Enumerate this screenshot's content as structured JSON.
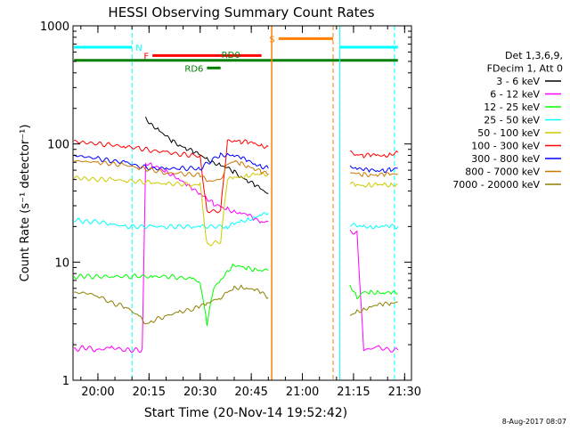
{
  "footer_date": "8-Aug-2017 08:07",
  "chart_data": {
    "type": "line",
    "title": "HESSI Observing Summary Count Rates",
    "xlabel": "Start Time (20-Nov-14 19:52:42)",
    "ylabel": "Count Rate (s⁻¹ detector⁻¹)",
    "yscale": "log",
    "ylim": [
      1,
      1000
    ],
    "xlim": [
      "19:52:42",
      "21:32:00"
    ],
    "x_ticks": [
      "20:00",
      "20:15",
      "20:30",
      "20:45",
      "21:00",
      "21:15",
      "21:30"
    ],
    "y_ticks": [
      "1",
      "10",
      "100",
      "1000"
    ],
    "grid": false,
    "legend_position": "right",
    "legend_header": [
      "Det 1,3,6,9,",
      "FDecim 1, Att 0"
    ],
    "series": [
      {
        "name": "3 - 6 keV",
        "color": "#000000",
        "points": [
          [
            "20:14",
            165
          ],
          [
            "20:16",
            145
          ],
          [
            "20:18",
            130
          ],
          [
            "20:20",
            115
          ],
          [
            "20:22",
            105
          ],
          [
            "20:24",
            98
          ],
          [
            "20:26",
            92
          ],
          [
            "20:28",
            86
          ],
          [
            "20:30",
            80
          ],
          [
            "20:32",
            75
          ],
          [
            "20:34",
            70
          ],
          [
            "20:36",
            66
          ],
          [
            "20:38",
            62
          ],
          [
            "20:40",
            58
          ],
          [
            "20:42",
            53
          ],
          [
            "20:44",
            49
          ],
          [
            "20:46",
            45
          ],
          [
            "20:48",
            41
          ],
          [
            "20:50",
            38
          ]
        ]
      },
      {
        "name": "6 - 12 keV",
        "color": "#ff00ff",
        "points": [
          [
            "19:53",
            1.8
          ],
          [
            "19:56",
            1.9
          ],
          [
            "20:00",
            1.8
          ],
          [
            "20:04",
            1.9
          ],
          [
            "20:08",
            1.8
          ],
          [
            "20:13",
            1.8
          ],
          [
            "20:14",
            70
          ],
          [
            "20:16",
            65
          ],
          [
            "20:18",
            62
          ],
          [
            "20:20",
            58
          ],
          [
            "20:22",
            55
          ],
          [
            "20:24",
            50
          ],
          [
            "20:26",
            45
          ],
          [
            "20:28",
            41
          ],
          [
            "20:30",
            38
          ],
          [
            "20:32",
            35
          ],
          [
            "20:34",
            31
          ],
          [
            "20:36",
            29
          ],
          [
            "20:38",
            28
          ],
          [
            "20:40",
            27
          ],
          [
            "20:42",
            26
          ],
          [
            "20:44",
            25
          ],
          [
            "20:46",
            23
          ],
          [
            "20:48",
            22
          ],
          [
            "20:50",
            22
          ],
          [
            "21:14",
            18
          ],
          [
            "21:16",
            18
          ],
          [
            "21:18",
            1.8
          ],
          [
            "21:22",
            1.9
          ],
          [
            "21:26",
            1.8
          ],
          [
            "21:28",
            1.8
          ]
        ]
      },
      {
        "name": "12 - 25 keV",
        "color": "#00ff00",
        "points": [
          [
            "19:53",
            7.5
          ],
          [
            "19:56",
            7.6
          ],
          [
            "20:00",
            7.5
          ],
          [
            "20:04",
            7.6
          ],
          [
            "20:08",
            7.5
          ],
          [
            "20:12",
            7.6
          ],
          [
            "20:16",
            7.5
          ],
          [
            "20:20",
            7.6
          ],
          [
            "20:24",
            7.4
          ],
          [
            "20:28",
            7.2
          ],
          [
            "20:30",
            6.8
          ],
          [
            "20:32",
            3.0
          ],
          [
            "20:34",
            6.0
          ],
          [
            "20:36",
            7.0
          ],
          [
            "20:38",
            8.5
          ],
          [
            "20:40",
            9.5
          ],
          [
            "20:42",
            9.0
          ],
          [
            "20:44",
            8.8
          ],
          [
            "20:46",
            8.7
          ],
          [
            "20:48",
            8.6
          ],
          [
            "20:50",
            8.5
          ],
          [
            "21:14",
            6.5
          ],
          [
            "21:16",
            5.0
          ],
          [
            "21:18",
            5.5
          ],
          [
            "21:20",
            5.5
          ],
          [
            "21:22",
            5.6
          ],
          [
            "21:24",
            5.5
          ],
          [
            "21:26",
            5.5
          ],
          [
            "21:28",
            5.4
          ]
        ]
      },
      {
        "name": "25 - 50 keV",
        "color": "#00ffff",
        "points": [
          [
            "19:53",
            23
          ],
          [
            "19:56",
            22
          ],
          [
            "20:00",
            22
          ],
          [
            "20:04",
            21
          ],
          [
            "20:08",
            20
          ],
          [
            "20:12",
            20
          ],
          [
            "20:16",
            20
          ],
          [
            "20:20",
            20
          ],
          [
            "20:24",
            20
          ],
          [
            "20:28",
            20
          ],
          [
            "20:30",
            20
          ],
          [
            "20:38",
            20
          ],
          [
            "20:40",
            21
          ],
          [
            "20:42",
            22
          ],
          [
            "20:44",
            23
          ],
          [
            "20:46",
            24
          ],
          [
            "20:48",
            25
          ],
          [
            "20:50",
            26
          ],
          [
            "21:14",
            21
          ],
          [
            "21:16",
            20
          ],
          [
            "21:18",
            20
          ],
          [
            "21:20",
            20
          ],
          [
            "21:22",
            20
          ],
          [
            "21:24",
            20
          ],
          [
            "21:26",
            20
          ],
          [
            "21:28",
            20
          ]
        ]
      },
      {
        "name": "50 - 100 keV",
        "color": "#cccc00",
        "points": [
          [
            "19:53",
            52
          ],
          [
            "19:56",
            51
          ],
          [
            "20:00",
            50
          ],
          [
            "20:04",
            50
          ],
          [
            "20:08",
            49
          ],
          [
            "20:12",
            48
          ],
          [
            "20:16",
            47
          ],
          [
            "20:20",
            46
          ],
          [
            "20:24",
            46
          ],
          [
            "20:28",
            45
          ],
          [
            "20:30",
            45
          ],
          [
            "20:32",
            14
          ],
          [
            "20:36",
            15
          ],
          [
            "20:38",
            50
          ],
          [
            "20:40",
            52
          ],
          [
            "20:42",
            53
          ],
          [
            "20:44",
            54
          ],
          [
            "20:46",
            55
          ],
          [
            "20:48",
            55
          ],
          [
            "20:50",
            56
          ],
          [
            "21:14",
            46
          ],
          [
            "21:16",
            45
          ],
          [
            "21:18",
            45
          ],
          [
            "21:20",
            45
          ],
          [
            "21:22",
            45
          ],
          [
            "21:24",
            45
          ],
          [
            "21:26",
            45
          ],
          [
            "21:28",
            46
          ]
        ]
      },
      {
        "name": "100 - 300 keV",
        "color": "#ff0000",
        "points": [
          [
            "19:53",
            105
          ],
          [
            "19:56",
            103
          ],
          [
            "20:00",
            100
          ],
          [
            "20:04",
            98
          ],
          [
            "20:08",
            95
          ],
          [
            "20:12",
            92
          ],
          [
            "20:16",
            88
          ],
          [
            "20:20",
            85
          ],
          [
            "20:24",
            82
          ],
          [
            "20:28",
            80
          ],
          [
            "20:30",
            78
          ],
          [
            "20:32",
            27
          ],
          [
            "20:36",
            27
          ],
          [
            "20:38",
            105
          ],
          [
            "20:40",
            108
          ],
          [
            "20:42",
            105
          ],
          [
            "20:44",
            103
          ],
          [
            "20:46",
            100
          ],
          [
            "20:48",
            97
          ],
          [
            "20:50",
            95
          ],
          [
            "21:14",
            85
          ],
          [
            "21:16",
            82
          ],
          [
            "21:18",
            80
          ],
          [
            "21:20",
            80
          ],
          [
            "21:22",
            80
          ],
          [
            "21:24",
            80
          ],
          [
            "21:26",
            82
          ],
          [
            "21:28",
            85
          ]
        ]
      },
      {
        "name": "300 - 800 keV",
        "color": "#0000ff",
        "points": [
          [
            "19:53",
            80
          ],
          [
            "19:56",
            78
          ],
          [
            "20:00",
            75
          ],
          [
            "20:04",
            72
          ],
          [
            "20:08",
            70
          ],
          [
            "20:12",
            65
          ],
          [
            "20:16",
            62
          ],
          [
            "20:20",
            62
          ],
          [
            "20:24",
            62
          ],
          [
            "20:28",
            62
          ],
          [
            "20:30",
            62
          ],
          [
            "20:34",
            75
          ],
          [
            "20:36",
            80
          ],
          [
            "20:38",
            82
          ],
          [
            "20:40",
            80
          ],
          [
            "20:42",
            76
          ],
          [
            "20:44",
            72
          ],
          [
            "20:46",
            68
          ],
          [
            "20:48",
            65
          ],
          [
            "20:50",
            62
          ],
          [
            "21:14",
            65
          ],
          [
            "21:16",
            62
          ],
          [
            "21:18",
            60
          ],
          [
            "21:20",
            60
          ],
          [
            "21:22",
            60
          ],
          [
            "21:24",
            60
          ],
          [
            "21:26",
            60
          ],
          [
            "21:28",
            62
          ]
        ]
      },
      {
        "name": "800 - 7000 keV",
        "color": "#cc7700",
        "points": [
          [
            "19:53",
            72
          ],
          [
            "19:56",
            71
          ],
          [
            "20:00",
            70
          ],
          [
            "20:04",
            68
          ],
          [
            "20:08",
            66
          ],
          [
            "20:12",
            63
          ],
          [
            "20:16",
            60
          ],
          [
            "20:20",
            57
          ],
          [
            "20:24",
            56
          ],
          [
            "20:28",
            55
          ],
          [
            "20:30",
            55
          ],
          [
            "20:32",
            48
          ],
          [
            "20:36",
            50
          ],
          [
            "20:38",
            68
          ],
          [
            "20:40",
            70
          ],
          [
            "20:42",
            68
          ],
          [
            "20:44",
            65
          ],
          [
            "20:46",
            62
          ],
          [
            "20:48",
            58
          ],
          [
            "20:50",
            55
          ],
          [
            "21:14",
            58
          ],
          [
            "21:16",
            55
          ],
          [
            "21:18",
            55
          ],
          [
            "21:20",
            55
          ],
          [
            "21:22",
            55
          ],
          [
            "21:24",
            55
          ],
          [
            "21:26",
            55
          ],
          [
            "21:28",
            56
          ]
        ]
      },
      {
        "name": "7000 - 20000 keV",
        "color": "#8b8000",
        "points": [
          [
            "19:53",
            5.5
          ],
          [
            "19:56",
            5.5
          ],
          [
            "20:00",
            5.2
          ],
          [
            "20:04",
            4.5
          ],
          [
            "20:08",
            4.2
          ],
          [
            "20:12",
            3.5
          ],
          [
            "20:14",
            3.0
          ],
          [
            "20:16",
            3.2
          ],
          [
            "20:20",
            3.5
          ],
          [
            "20:24",
            3.8
          ],
          [
            "20:28",
            4.0
          ],
          [
            "20:30",
            4.2
          ],
          [
            "20:32",
            4.5
          ],
          [
            "20:36",
            5.0
          ],
          [
            "20:38",
            5.5
          ],
          [
            "20:40",
            6.0
          ],
          [
            "20:42",
            6.2
          ],
          [
            "20:44",
            6.0
          ],
          [
            "20:46",
            5.8
          ],
          [
            "20:48",
            5.5
          ],
          [
            "20:50",
            5.0
          ],
          [
            "21:14",
            3.5
          ],
          [
            "21:16",
            3.8
          ],
          [
            "21:18",
            4.0
          ],
          [
            "21:20",
            4.2
          ],
          [
            "21:22",
            4.3
          ],
          [
            "21:24",
            4.4
          ],
          [
            "21:26",
            4.5
          ],
          [
            "21:28",
            4.6
          ]
        ]
      }
    ],
    "annotations": {
      "night_vlines": {
        "color": "#00ffff",
        "style": "dashed",
        "times": [
          "20:10",
          "21:27"
        ]
      },
      "solid_vlines": {
        "color": "#00ffff",
        "times": [
          "21:11"
        ]
      },
      "saa_vlines": {
        "color": "#ff8000",
        "times_solid": [
          "20:51"
        ],
        "times_dashed": [
          "21:09"
        ]
      },
      "bars": [
        {
          "label": "N",
          "color": "#00ffff",
          "y": 660,
          "segments": [
            [
              "19:53",
              "20:10"
            ],
            [
              "21:11",
              "21:28"
            ]
          ]
        },
        {
          "label": "F",
          "color": "#ff0000",
          "y": 560,
          "segments": [
            [
              "20:16",
              "20:48"
            ]
          ]
        },
        {
          "label": "RD0",
          "color": "#008000",
          "y": 510,
          "segments": [
            [
              "19:53",
              "21:28"
            ]
          ]
        },
        {
          "label": "RD6",
          "color": "#008000",
          "y": 440,
          "segments": [
            [
              "20:32",
              "20:36"
            ]
          ]
        },
        {
          "label": "S",
          "color": "#ff8000",
          "y": 780,
          "segments": [
            [
              "20:53",
              "21:09"
            ]
          ]
        }
      ]
    }
  }
}
